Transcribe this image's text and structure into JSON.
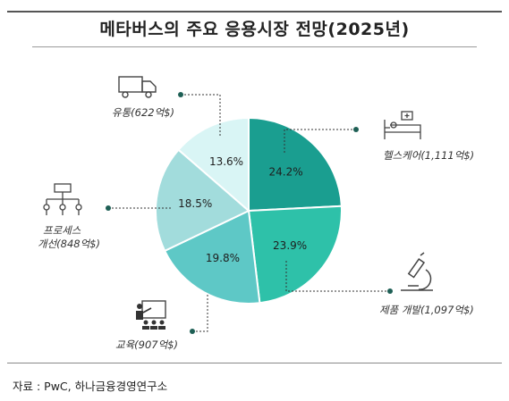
{
  "chart_data": {
    "type": "pie",
    "title": "메타버스의 주요 응용시장 전망(2025년)",
    "unit": "억$",
    "slices": [
      {
        "label": "헬스케어",
        "value": 24.2,
        "value_label": "24.2%",
        "amount": "1,111억$",
        "color": "#1a9e90"
      },
      {
        "label": "제품 개발",
        "value": 23.9,
        "value_label": "23.9%",
        "amount": "1,097억$",
        "color": "#2ec1a9"
      },
      {
        "label": "교육",
        "value": 19.8,
        "value_label": "19.8%",
        "amount": "907억$",
        "color": "#5ec8c6"
      },
      {
        "label": "프로세스 개선",
        "value": 18.5,
        "value_label": "18.5%",
        "amount": "848억$",
        "color": "#a2dcdc"
      },
      {
        "label": "유통",
        "value": 13.6,
        "value_label": "13.6%",
        "amount": "622억$",
        "color": "#d9f5f5"
      }
    ]
  },
  "labels": {
    "healthcare": "헬스케어(1,111억$)",
    "product_dev": "제품 개발(1,097억$)",
    "education": "교육(907억$)",
    "process_line1": "프로세스",
    "process_line2": "개선(848억$)",
    "distribution": "유통(622억$)"
  },
  "icons": [
    "truck-icon",
    "hospital-bed-icon",
    "microscope-icon",
    "teacher-icon",
    "flowchart-icon"
  ],
  "source": "자료 : PwC, 하나금융경영연구소"
}
